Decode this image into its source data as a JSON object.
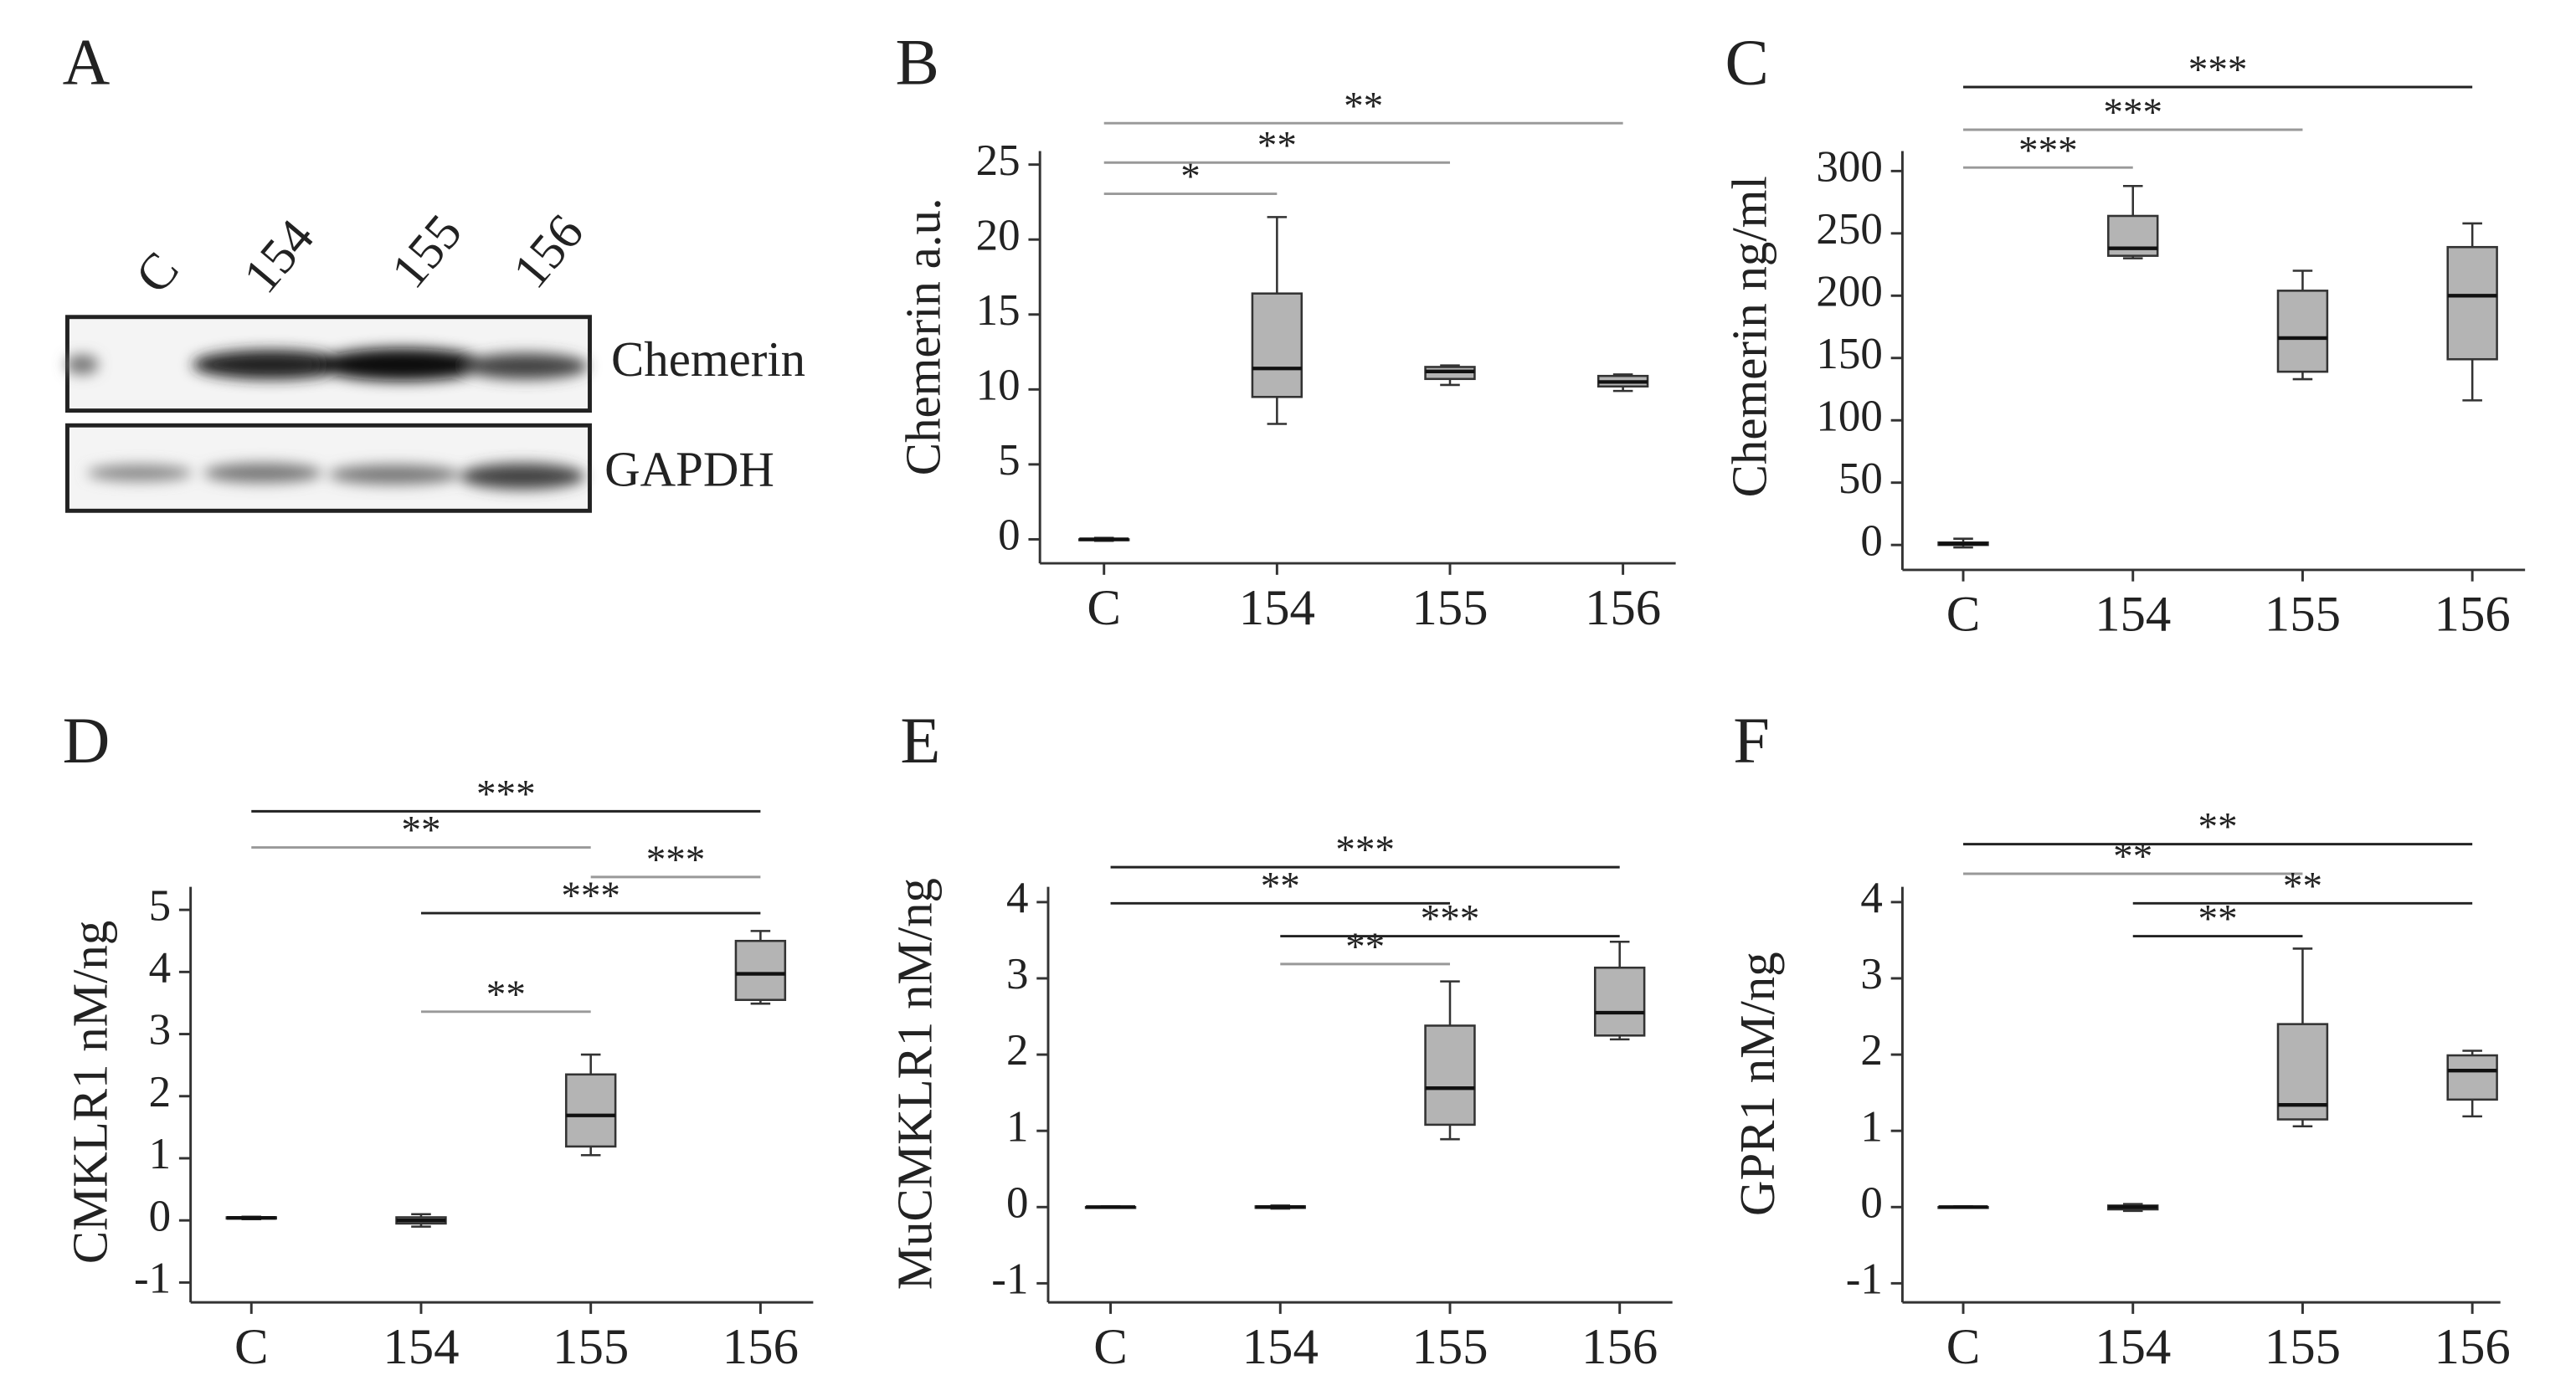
{
  "blot": {
    "panel": "A",
    "lanes": [
      "C",
      "154",
      "155",
      "156"
    ],
    "bands": [
      "Chemerin",
      "GAPDH"
    ]
  },
  "chart_data": [
    {
      "type": "box",
      "panel": "B",
      "ylabel": "Chemerin a.u.",
      "categories": [
        "C",
        "154",
        "155",
        "156"
      ],
      "boxes": [
        {
          "min": -0.1,
          "q1": 0,
          "median": 0,
          "q3": 0,
          "max": 0.1
        },
        {
          "min": 7.7,
          "q1": 9.5,
          "median": 11.4,
          "q3": 16.4,
          "max": 21.5
        },
        {
          "min": 10.3,
          "q1": 10.7,
          "median": 11.2,
          "q3": 11.5,
          "max": 11.6
        },
        {
          "min": 9.9,
          "q1": 10.2,
          "median": 10.5,
          "q3": 10.9,
          "max": 11.0
        }
      ],
      "color": "#b4b4b4",
      "ylim": [
        -1.6,
        25.9
      ],
      "yticks": [
        0,
        5,
        10,
        15,
        20,
        25
      ],
      "annotations": [
        {
          "from": 0,
          "to": 1,
          "label": "*",
          "color": "#999999"
        },
        {
          "from": 0,
          "to": 2,
          "label": "**",
          "color": "#999999"
        },
        {
          "from": 0,
          "to": 3,
          "label": "**",
          "color": "#999999"
        }
      ]
    },
    {
      "type": "box",
      "panel": "C",
      "ylabel": "Chemerin ng/ml",
      "categories": [
        "C",
        "154",
        "155",
        "156"
      ],
      "boxes": [
        {
          "min": -2,
          "q1": 0,
          "median": 1,
          "q3": 2,
          "max": 5
        },
        {
          "min": 230,
          "q1": 232,
          "median": 238,
          "q3": 264,
          "max": 288
        },
        {
          "min": 133,
          "q1": 139,
          "median": 166,
          "q3": 204,
          "max": 220
        },
        {
          "min": 116,
          "q1": 149,
          "median": 200,
          "q3": 239,
          "max": 258
        }
      ],
      "color": "#b4b4b4",
      "ylim": [
        -20,
        316
      ],
      "yticks": [
        0,
        50,
        100,
        150,
        200,
        250,
        300
      ],
      "annotations": [
        {
          "from": 0,
          "to": 1,
          "label": "***",
          "color": "#999999"
        },
        {
          "from": 0,
          "to": 2,
          "label": "***",
          "color": "#999999"
        },
        {
          "from": 0,
          "to": 3,
          "label": "***",
          "color": "#222222"
        }
      ]
    },
    {
      "type": "box",
      "panel": "D",
      "ylabel": "CMKLR1 nM/ng",
      "categories": [
        "C",
        "154",
        "155",
        "156"
      ],
      "boxes": [
        {
          "min": 0.02,
          "q1": 0.03,
          "median": 0.04,
          "q3": 0.05,
          "max": 0.06
        },
        {
          "min": -0.1,
          "q1": -0.05,
          "median": 0,
          "q3": 0.05,
          "max": 0.1
        },
        {
          "min": 1.05,
          "q1": 1.19,
          "median": 1.69,
          "q3": 2.35,
          "max": 2.67
        },
        {
          "min": 3.49,
          "q1": 3.55,
          "median": 3.97,
          "q3": 4.5,
          "max": 4.66
        }
      ],
      "color": "#b4b4b4",
      "ylim": [
        -1.32,
        5.37
      ],
      "yticks": [
        -1,
        0,
        1,
        2,
        3,
        4,
        5
      ],
      "annotations": [
        {
          "from": 0,
          "to": 3,
          "label": "***",
          "color": "#222222"
        },
        {
          "from": 0,
          "to": 2,
          "label": "**",
          "color": "#999999"
        },
        {
          "from": 2,
          "to": 3,
          "label": "***",
          "color": "#999999"
        },
        {
          "from": 1,
          "to": 3,
          "label": "***",
          "color": "#222222"
        },
        {
          "from": 1,
          "to": 2,
          "label": "**",
          "color": "#999999"
        }
      ]
    },
    {
      "type": "box",
      "panel": "E",
      "ylabel": "MuCMKLR1 nM/ng",
      "categories": [
        "C",
        "154",
        "155",
        "156"
      ],
      "boxes": [
        {
          "min": -0.01,
          "q1": 0,
          "median": 0,
          "q3": 0,
          "max": 0.01
        },
        {
          "min": -0.02,
          "q1": -0.01,
          "median": 0,
          "q3": 0.01,
          "max": 0.02
        },
        {
          "min": 0.89,
          "q1": 1.08,
          "median": 1.56,
          "q3": 2.38,
          "max": 2.96
        },
        {
          "min": 2.2,
          "q1": 2.25,
          "median": 2.55,
          "q3": 3.14,
          "max": 3.48
        }
      ],
      "color": "#b4b4b4",
      "ylim": [
        -1.25,
        4.2
      ],
      "yticks": [
        -1,
        0,
        1,
        2,
        3,
        4
      ],
      "annotations": [
        {
          "from": 0,
          "to": 3,
          "label": "***",
          "color": "#222222"
        },
        {
          "from": 0,
          "to": 2,
          "label": "**",
          "color": "#222222"
        },
        {
          "from": 1,
          "to": 3,
          "label": "***",
          "color": "#222222"
        },
        {
          "from": 1,
          "to": 2,
          "label": "**",
          "color": "#999999"
        }
      ]
    },
    {
      "type": "box",
      "panel": "F",
      "ylabel": "GPR1 nM/ng",
      "categories": [
        "C",
        "154",
        "155",
        "156"
      ],
      "boxes": [
        {
          "min": -0.01,
          "q1": 0,
          "median": 0,
          "q3": 0,
          "max": 0.01
        },
        {
          "min": -0.05,
          "q1": -0.03,
          "median": 0,
          "q3": 0.02,
          "max": 0.04
        },
        {
          "min": 1.06,
          "q1": 1.15,
          "median": 1.34,
          "q3": 2.4,
          "max": 3.39
        },
        {
          "min": 1.19,
          "q1": 1.41,
          "median": 1.79,
          "q3": 1.99,
          "max": 2.05
        }
      ],
      "color": "#b4b4b4",
      "ylim": [
        -1.25,
        4.2
      ],
      "yticks": [
        -1,
        0,
        1,
        2,
        3,
        4
      ],
      "annotations": [
        {
          "from": 0,
          "to": 3,
          "label": "**",
          "color": "#222222"
        },
        {
          "from": 0,
          "to": 2,
          "label": "**",
          "color": "#999999"
        },
        {
          "from": 1,
          "to": 3,
          "label": "**",
          "color": "#222222"
        },
        {
          "from": 1,
          "to": 2,
          "label": "**",
          "color": "#222222"
        }
      ]
    }
  ]
}
